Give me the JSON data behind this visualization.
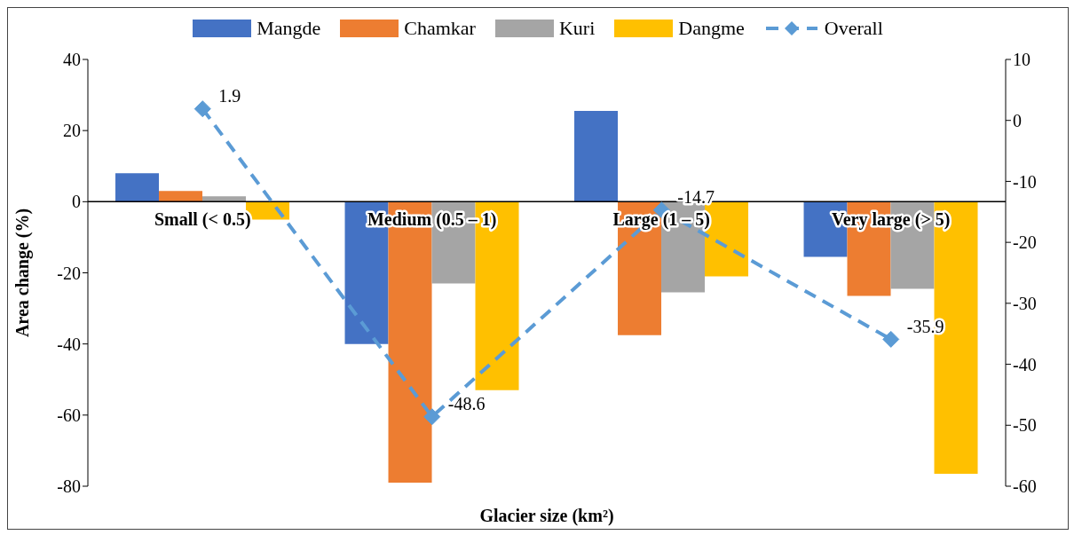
{
  "chart_data": {
    "type": "bar",
    "xlabel": "Glacier size (km²)",
    "ylabel": "Area change (%)",
    "categories": [
      "Small (< 0.5)",
      "Medium (0.5 – 1)",
      "Large (1 – 5)",
      "Very large (> 5)"
    ],
    "series": [
      {
        "name": "Mangde",
        "color": "#4472c4",
        "values": [
          8,
          -40,
          25.5,
          -15.5
        ]
      },
      {
        "name": "Chamkar",
        "color": "#ed7d31",
        "values": [
          3,
          -79,
          -37.5,
          -26.5
        ]
      },
      {
        "name": "Kuri",
        "color": "#a5a5a5",
        "values": [
          1.5,
          -23,
          -25.5,
          -24.5
        ]
      },
      {
        "name": "Dangme",
        "color": "#ffc000",
        "values": [
          -5,
          -53,
          -21,
          -76.5
        ]
      },
      {
        "name": "Overall",
        "type": "line",
        "axis": "y2",
        "color": "#5b9bd5",
        "values": [
          1.9,
          -48.6,
          -14.7,
          -35.9
        ],
        "value_labels": [
          "1.9",
          "-48.6",
          "-14.7",
          "-35.9"
        ]
      }
    ],
    "ylim": [
      -80,
      40
    ],
    "yticks": [
      -80,
      -60,
      -40,
      -20,
      0,
      20,
      40
    ],
    "y2lim": [
      -60,
      10
    ],
    "y2ticks": [
      -60,
      -50,
      -40,
      -30,
      -20,
      -10,
      0,
      10
    ],
    "legend": "top",
    "marker": "diamond",
    "line_style": "dashed"
  }
}
